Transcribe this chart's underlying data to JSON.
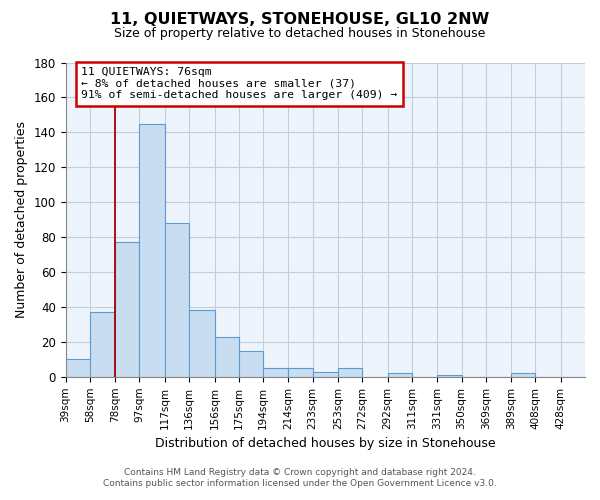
{
  "title": "11, QUIETWAYS, STONEHOUSE, GL10 2NW",
  "subtitle": "Size of property relative to detached houses in Stonehouse",
  "xlabel": "Distribution of detached houses by size in Stonehouse",
  "ylabel": "Number of detached properties",
  "bar_values": [
    10,
    37,
    77,
    145,
    88,
    38,
    23,
    15,
    5,
    5,
    3,
    5,
    0,
    2,
    0,
    1,
    0,
    0,
    2,
    0,
    0
  ],
  "bin_labels": [
    "39sqm",
    "58sqm",
    "78sqm",
    "97sqm",
    "117sqm",
    "136sqm",
    "156sqm",
    "175sqm",
    "194sqm",
    "214sqm",
    "233sqm",
    "253sqm",
    "272sqm",
    "292sqm",
    "311sqm",
    "331sqm",
    "350sqm",
    "369sqm",
    "389sqm",
    "408sqm",
    "428sqm"
  ],
  "bar_edges": [
    39,
    58,
    78,
    97,
    117,
    136,
    156,
    175,
    194,
    214,
    233,
    253,
    272,
    292,
    311,
    331,
    350,
    369,
    389,
    408,
    428,
    447
  ],
  "bar_color": "#c8ddf0",
  "bar_edge_color": "#5b9bd5",
  "vline_x": 78,
  "vline_color": "#aa0000",
  "ylim": [
    0,
    180
  ],
  "yticks": [
    0,
    20,
    40,
    60,
    80,
    100,
    120,
    140,
    160,
    180
  ],
  "annotation_title": "11 QUIETWAYS: 76sqm",
  "annotation_line1": "← 8% of detached houses are smaller (37)",
  "annotation_line2": "91% of semi-detached houses are larger (409) →",
  "footer_line1": "Contains HM Land Registry data © Crown copyright and database right 2024.",
  "footer_line2": "Contains public sector information licensed under the Open Government Licence v3.0.",
  "plot_bg_color": "#eef4fb",
  "fig_bg_color": "#ffffff",
  "grid_color": "#c0cfe0"
}
